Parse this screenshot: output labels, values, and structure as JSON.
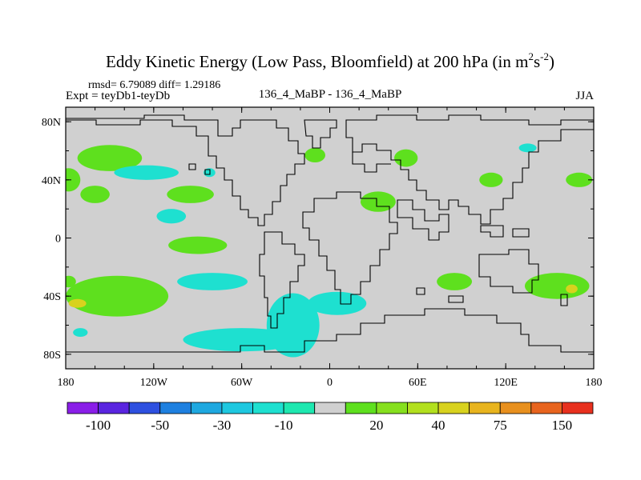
{
  "chart_data": {
    "type": "heatmap",
    "title_main": "Eddy Kinetic Energy (Low Pass, Bloomfield) at 200 hPa (in m",
    "title_sup1": "2",
    "title_mid": "s",
    "title_sup2": "-2",
    "title_end": ")",
    "stats": "rmsd= 6.79089 diff= 1.29186",
    "expt": "Expt = teyDb1-teyDb",
    "center_label": "136_4_MaBP - 136_4_MaBP",
    "season": "JJA",
    "x_ticks": [
      {
        "value": -180,
        "label": "180"
      },
      {
        "value": -120,
        "label": "120W"
      },
      {
        "value": -60,
        "label": "60W"
      },
      {
        "value": 0,
        "label": "0"
      },
      {
        "value": 60,
        "label": "60E"
      },
      {
        "value": 120,
        "label": "120E"
      },
      {
        "value": 180,
        "label": "180"
      }
    ],
    "y_ticks": [
      {
        "value": 80,
        "label": "80N"
      },
      {
        "value": 40,
        "label": "40N"
      },
      {
        "value": 0,
        "label": "0"
      },
      {
        "value": -40,
        "label": "40S"
      },
      {
        "value": -80,
        "label": "80S"
      }
    ],
    "xlim": [
      -180,
      180
    ],
    "ylim": [
      -90,
      90
    ],
    "colorbar": {
      "colors": [
        "#8a1ee8",
        "#5a25e0",
        "#2e50e0",
        "#1e80e0",
        "#1ea8e0",
        "#1ec8e0",
        "#1ee0d0",
        "#1ee8b0",
        "#d0d0d0",
        "#5ee01e",
        "#86e01e",
        "#b2e01e",
        "#d8d21e",
        "#e8b41e",
        "#e8901e",
        "#e8641e",
        "#e8301e"
      ],
      "labels": [
        {
          "boundary": 1,
          "text": "-100"
        },
        {
          "boundary": 3,
          "text": "-50"
        },
        {
          "boundary": 5,
          "text": "-30"
        },
        {
          "boundary": 7,
          "text": "-10"
        },
        {
          "boundary": 10,
          "text": "20"
        },
        {
          "boundary": 12,
          "text": "40"
        },
        {
          "boundary": 14,
          "text": "75"
        },
        {
          "boundary": 16,
          "text": "150"
        }
      ]
    },
    "background_color": "#d0d0d0",
    "regions": [
      {
        "name": "green-nw-pacific",
        "color": "#5ee01e",
        "lon": -150,
        "lat": 55,
        "rlon": 22,
        "rlat": 9
      },
      {
        "name": "green-w-pacific",
        "color": "#5ee01e",
        "lon": -178,
        "lat": 40,
        "rlon": 8,
        "rlat": 8
      },
      {
        "name": "cyan-n-pacific",
        "color": "#1ee0d0",
        "lon": -125,
        "lat": 45,
        "rlon": 22,
        "rlat": 5
      },
      {
        "name": "green-n-pacific",
        "color": "#5ee01e",
        "lon": -160,
        "lat": 30,
        "rlon": 10,
        "rlat": 6
      },
      {
        "name": "cyan-mid-pacific",
        "color": "#1ee0d0",
        "lon": -108,
        "lat": 15,
        "rlon": 10,
        "rlat": 5
      },
      {
        "name": "cyan-small-1",
        "color": "#1ee0d0",
        "lon": -82,
        "lat": 45,
        "rlon": 4,
        "rlat": 3
      },
      {
        "name": "green-c-america",
        "color": "#5ee01e",
        "lon": -95,
        "lat": 30,
        "rlon": 16,
        "rlat": 6
      },
      {
        "name": "green-tropic-pacific",
        "color": "#5ee01e",
        "lon": -90,
        "lat": -5,
        "rlon": 20,
        "rlat": 6
      },
      {
        "name": "green-atlantic-n",
        "color": "#5ee01e",
        "lon": -10,
        "lat": 57,
        "rlon": 7,
        "rlat": 5
      },
      {
        "name": "green-eurasia",
        "color": "#5ee01e",
        "lon": 52,
        "lat": 55,
        "rlon": 8,
        "rlat": 6
      },
      {
        "name": "green-mideast",
        "color": "#5ee01e",
        "lon": 33,
        "lat": 25,
        "rlon": 12,
        "rlat": 7
      },
      {
        "name": "green-c-asia",
        "color": "#5ee01e",
        "lon": 110,
        "lat": 40,
        "rlon": 8,
        "rlat": 5
      },
      {
        "name": "green-pacific-e",
        "color": "#5ee01e",
        "lon": 170,
        "lat": 40,
        "rlon": 9,
        "rlat": 5
      },
      {
        "name": "cyan-ne-asia",
        "color": "#1ee0d0",
        "lon": 135,
        "lat": 62,
        "rlon": 6,
        "rlat": 3
      },
      {
        "name": "green-s-pacific-w",
        "color": "#5ee01e",
        "lon": -145,
        "lat": -40,
        "rlon": 35,
        "rlat": 14
      },
      {
        "name": "cyan-s-pacific",
        "color": "#1ee0d0",
        "lon": -80,
        "lat": -30,
        "rlon": 24,
        "rlat": 6
      },
      {
        "name": "cyan-s-pacific-2",
        "color": "#1ee0d0",
        "lon": -60,
        "lat": -70,
        "rlon": 40,
        "rlat": 8
      },
      {
        "name": "cyan-s-atlantic",
        "color": "#1ee0d0",
        "lon": -25,
        "lat": -60,
        "rlon": 18,
        "rlat": 22
      },
      {
        "name": "cyan-s-atlantic-2",
        "color": "#1ee0d0",
        "lon": 5,
        "lat": -45,
        "rlon": 20,
        "rlat": 8
      },
      {
        "name": "green-indian",
        "color": "#5ee01e",
        "lon": 85,
        "lat": -30,
        "rlon": 12,
        "rlat": 6
      },
      {
        "name": "green-s-pacific-e",
        "color": "#5ee01e",
        "lon": 155,
        "lat": -33,
        "rlon": 22,
        "rlat": 9
      },
      {
        "name": "orange-hot-1",
        "color": "#d8d21e",
        "lon": -172,
        "lat": -45,
        "rlon": 6,
        "rlat": 3
      },
      {
        "name": "orange-hot-2",
        "color": "#d8d21e",
        "lon": 165,
        "lat": -35,
        "rlon": 4,
        "rlat": 3
      },
      {
        "name": "cyan-w-pac-s",
        "color": "#1ee0d0",
        "lon": -170,
        "lat": -65,
        "rlon": 5,
        "rlat": 3
      },
      {
        "name": "green-w-pac-s",
        "color": "#5ee01e",
        "lon": -178,
        "lat": -30,
        "rlon": 5,
        "rlat": 4
      }
    ]
  }
}
